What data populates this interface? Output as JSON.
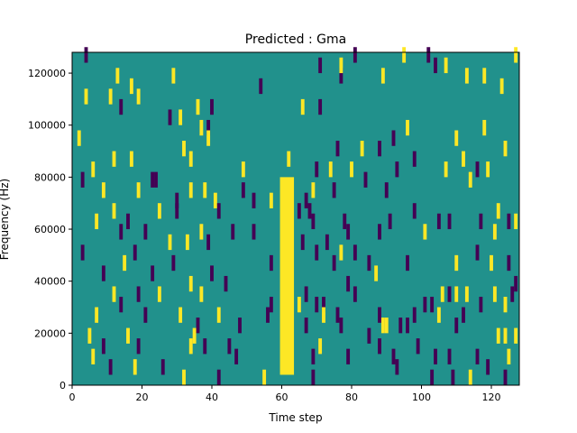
{
  "chart_data": {
    "type": "heatmap",
    "title": "Predicted : Gma",
    "xlabel": "Time step",
    "ylabel": "Frequency (Hz)",
    "xlim": [
      0,
      128
    ],
    "ylim": [
      0,
      128000
    ],
    "xticks": [
      0,
      20,
      40,
      60,
      80,
      100,
      120
    ],
    "yticks": [
      0,
      20000,
      40000,
      60000,
      80000,
      100000,
      120000
    ],
    "xtick_labels": [
      "0",
      "20",
      "40",
      "60",
      "80",
      "100",
      "120"
    ],
    "ytick_labels": [
      "0",
      "20000",
      "40000",
      "60000",
      "80000",
      "100000",
      "120000"
    ],
    "grid": false,
    "colormap": "viridis",
    "colors": {
      "background": "#21918c",
      "low": "#440154",
      "high": "#fde725",
      "frame": "#000000"
    },
    "cell_width_steps": 1,
    "cell_height_hz": 4000,
    "bright_band": {
      "x_start": 59.5,
      "x_end": 63.5,
      "y_start": 4000,
      "y_end": 80000,
      "value": "high"
    },
    "cells": [
      {
        "x": 4,
        "y": 124000,
        "v": "low"
      },
      {
        "x": 13,
        "y": 116000,
        "v": "yellow"
      },
      {
        "x": 17,
        "y": 112000,
        "v": "yellow"
      },
      {
        "x": 29,
        "y": 116000,
        "v": "yellow"
      },
      {
        "x": 36,
        "y": 104000,
        "v": "yellow"
      },
      {
        "x": 40,
        "y": 104000,
        "v": "low"
      },
      {
        "x": 54,
        "y": 112000,
        "v": "low"
      },
      {
        "x": 66,
        "y": 104000,
        "v": "yellow"
      },
      {
        "x": 71,
        "y": 104000,
        "v": "low"
      },
      {
        "x": 77,
        "y": 116000,
        "v": "low"
      },
      {
        "x": 71,
        "y": 120000,
        "v": "low"
      },
      {
        "x": 77,
        "y": 120000,
        "v": "yellow"
      },
      {
        "x": 81,
        "y": 124000,
        "v": "low"
      },
      {
        "x": 89,
        "y": 116000,
        "v": "yellow"
      },
      {
        "x": 95,
        "y": 124000,
        "v": "yellow"
      },
      {
        "x": 102,
        "y": 124000,
        "v": "low"
      },
      {
        "x": 104,
        "y": 120000,
        "v": "low"
      },
      {
        "x": 107,
        "y": 120000,
        "v": "yellow"
      },
      {
        "x": 113,
        "y": 116000,
        "v": "yellow"
      },
      {
        "x": 118,
        "y": 116000,
        "v": "yellow"
      },
      {
        "x": 123,
        "y": 112000,
        "v": "yellow"
      },
      {
        "x": 127,
        "y": 124000,
        "v": "yellow"
      },
      {
        "x": 2,
        "y": 92000,
        "v": "yellow"
      },
      {
        "x": 4,
        "y": 108000,
        "v": "yellow"
      },
      {
        "x": 6,
        "y": 80000,
        "v": "yellow"
      },
      {
        "x": 11,
        "y": 108000,
        "v": "yellow"
      },
      {
        "x": 14,
        "y": 104000,
        "v": "low"
      },
      {
        "x": 19,
        "y": 108000,
        "v": "yellow"
      },
      {
        "x": 28,
        "y": 100000,
        "v": "low"
      },
      {
        "x": 31,
        "y": 100000,
        "v": "yellow"
      },
      {
        "x": 37,
        "y": 96000,
        "v": "yellow"
      },
      {
        "x": 39,
        "y": 96000,
        "v": "low"
      },
      {
        "x": 32,
        "y": 88000,
        "v": "yellow"
      },
      {
        "x": 39,
        "y": 92000,
        "v": "yellow"
      },
      {
        "x": 34,
        "y": 84000,
        "v": "yellow"
      },
      {
        "x": 12,
        "y": 84000,
        "v": "yellow"
      },
      {
        "x": 17,
        "y": 84000,
        "v": "yellow"
      },
      {
        "x": 49,
        "y": 80000,
        "v": "yellow"
      },
      {
        "x": 62,
        "y": 84000,
        "v": "yellow"
      },
      {
        "x": 70,
        "y": 80000,
        "v": "low"
      },
      {
        "x": 74,
        "y": 80000,
        "v": "yellow"
      },
      {
        "x": 76,
        "y": 88000,
        "v": "low"
      },
      {
        "x": 83,
        "y": 88000,
        "v": "yellow"
      },
      {
        "x": 88,
        "y": 88000,
        "v": "low"
      },
      {
        "x": 92,
        "y": 92000,
        "v": "low"
      },
      {
        "x": 96,
        "y": 96000,
        "v": "yellow"
      },
      {
        "x": 110,
        "y": 92000,
        "v": "yellow"
      },
      {
        "x": 112,
        "y": 84000,
        "v": "yellow"
      },
      {
        "x": 118,
        "y": 96000,
        "v": "yellow"
      },
      {
        "x": 124,
        "y": 88000,
        "v": "yellow"
      },
      {
        "x": 119,
        "y": 80000,
        "v": "yellow"
      },
      {
        "x": 116,
        "y": 80000,
        "v": "low"
      },
      {
        "x": 114,
        "y": 76000,
        "v": "yellow"
      },
      {
        "x": 107,
        "y": 80000,
        "v": "yellow"
      },
      {
        "x": 98,
        "y": 84000,
        "v": "low"
      },
      {
        "x": 93,
        "y": 80000,
        "v": "low"
      },
      {
        "x": 90,
        "y": 72000,
        "v": "low"
      },
      {
        "x": 84,
        "y": 76000,
        "v": "low"
      },
      {
        "x": 80,
        "y": 80000,
        "v": "yellow"
      },
      {
        "x": 3,
        "y": 76000,
        "v": "low"
      },
      {
        "x": 9,
        "y": 72000,
        "v": "yellow"
      },
      {
        "x": 23,
        "y": 76000,
        "v": "low"
      },
      {
        "x": 24,
        "y": 76000,
        "v": "low"
      },
      {
        "x": 19,
        "y": 72000,
        "v": "yellow"
      },
      {
        "x": 30,
        "y": 68000,
        "v": "low"
      },
      {
        "x": 34,
        "y": 72000,
        "v": "yellow"
      },
      {
        "x": 38,
        "y": 72000,
        "v": "yellow"
      },
      {
        "x": 41,
        "y": 68000,
        "v": "yellow"
      },
      {
        "x": 49,
        "y": 72000,
        "v": "low"
      },
      {
        "x": 52,
        "y": 68000,
        "v": "low"
      },
      {
        "x": 57,
        "y": 68000,
        "v": "yellow"
      },
      {
        "x": 67,
        "y": 68000,
        "v": "low"
      },
      {
        "x": 69,
        "y": 72000,
        "v": "yellow"
      },
      {
        "x": 75,
        "y": 72000,
        "v": "low"
      },
      {
        "x": 12,
        "y": 64000,
        "v": "yellow"
      },
      {
        "x": 16,
        "y": 60000,
        "v": "low"
      },
      {
        "x": 25,
        "y": 64000,
        "v": "yellow"
      },
      {
        "x": 30,
        "y": 64000,
        "v": "low"
      },
      {
        "x": 42,
        "y": 64000,
        "v": "low"
      },
      {
        "x": 52,
        "y": 56000,
        "v": "low"
      },
      {
        "x": 65,
        "y": 64000,
        "v": "low"
      },
      {
        "x": 68,
        "y": 64000,
        "v": "low"
      },
      {
        "x": 69,
        "y": 60000,
        "v": "low"
      },
      {
        "x": 78,
        "y": 60000,
        "v": "low"
      },
      {
        "x": 79,
        "y": 56000,
        "v": "low"
      },
      {
        "x": 88,
        "y": 56000,
        "v": "low"
      },
      {
        "x": 91,
        "y": 60000,
        "v": "low"
      },
      {
        "x": 98,
        "y": 64000,
        "v": "low"
      },
      {
        "x": 101,
        "y": 56000,
        "v": "yellow"
      },
      {
        "x": 105,
        "y": 60000,
        "v": "low"
      },
      {
        "x": 108,
        "y": 60000,
        "v": "low"
      },
      {
        "x": 117,
        "y": 60000,
        "v": "low"
      },
      {
        "x": 122,
        "y": 64000,
        "v": "yellow"
      },
      {
        "x": 121,
        "y": 56000,
        "v": "yellow"
      },
      {
        "x": 125,
        "y": 60000,
        "v": "low"
      },
      {
        "x": 127,
        "y": 60000,
        "v": "yellow"
      },
      {
        "x": 7,
        "y": 60000,
        "v": "yellow"
      },
      {
        "x": 14,
        "y": 56000,
        "v": "low"
      },
      {
        "x": 21,
        "y": 56000,
        "v": "low"
      },
      {
        "x": 28,
        "y": 52000,
        "v": "yellow"
      },
      {
        "x": 33,
        "y": 52000,
        "v": "yellow"
      },
      {
        "x": 37,
        "y": 56000,
        "v": "yellow"
      },
      {
        "x": 39,
        "y": 52000,
        "v": "low"
      },
      {
        "x": 46,
        "y": 56000,
        "v": "low"
      },
      {
        "x": 57,
        "y": 44000,
        "v": "low"
      },
      {
        "x": 66,
        "y": 52000,
        "v": "low"
      },
      {
        "x": 70,
        "y": 48000,
        "v": "low"
      },
      {
        "x": 73,
        "y": 52000,
        "v": "low"
      },
      {
        "x": 75,
        "y": 44000,
        "v": "low"
      },
      {
        "x": 77,
        "y": 48000,
        "v": "yellow"
      },
      {
        "x": 81,
        "y": 48000,
        "v": "low"
      },
      {
        "x": 85,
        "y": 44000,
        "v": "low"
      },
      {
        "x": 87,
        "y": 40000,
        "v": "yellow"
      },
      {
        "x": 96,
        "y": 44000,
        "v": "low"
      },
      {
        "x": 110,
        "y": 44000,
        "v": "yellow"
      },
      {
        "x": 116,
        "y": 48000,
        "v": "low"
      },
      {
        "x": 120,
        "y": 44000,
        "v": "yellow"
      },
      {
        "x": 125,
        "y": 44000,
        "v": "low"
      },
      {
        "x": 3,
        "y": 48000,
        "v": "low"
      },
      {
        "x": 9,
        "y": 40000,
        "v": "low"
      },
      {
        "x": 15,
        "y": 44000,
        "v": "yellow"
      },
      {
        "x": 18,
        "y": 48000,
        "v": "low"
      },
      {
        "x": 23,
        "y": 40000,
        "v": "low"
      },
      {
        "x": 29,
        "y": 44000,
        "v": "low"
      },
      {
        "x": 34,
        "y": 36000,
        "v": "yellow"
      },
      {
        "x": 40,
        "y": 40000,
        "v": "low"
      },
      {
        "x": 44,
        "y": 36000,
        "v": "low"
      },
      {
        "x": 12,
        "y": 32000,
        "v": "yellow"
      },
      {
        "x": 19,
        "y": 32000,
        "v": "low"
      },
      {
        "x": 25,
        "y": 32000,
        "v": "yellow"
      },
      {
        "x": 37,
        "y": 32000,
        "v": "yellow"
      },
      {
        "x": 67,
        "y": 32000,
        "v": "low"
      },
      {
        "x": 70,
        "y": 28000,
        "v": "low"
      },
      {
        "x": 72,
        "y": 28000,
        "v": "low"
      },
      {
        "x": 79,
        "y": 36000,
        "v": "low"
      },
      {
        "x": 81,
        "y": 32000,
        "v": "low"
      },
      {
        "x": 88,
        "y": 24000,
        "v": "low"
      },
      {
        "x": 98,
        "y": 24000,
        "v": "low"
      },
      {
        "x": 101,
        "y": 28000,
        "v": "low"
      },
      {
        "x": 103,
        "y": 28000,
        "v": "low"
      },
      {
        "x": 106,
        "y": 32000,
        "v": "yellow"
      },
      {
        "x": 108,
        "y": 32000,
        "v": "low"
      },
      {
        "x": 110,
        "y": 32000,
        "v": "yellow"
      },
      {
        "x": 113,
        "y": 32000,
        "v": "yellow"
      },
      {
        "x": 117,
        "y": 28000,
        "v": "low"
      },
      {
        "x": 121,
        "y": 32000,
        "v": "yellow"
      },
      {
        "x": 124,
        "y": 28000,
        "v": "yellow"
      },
      {
        "x": 126,
        "y": 32000,
        "v": "low"
      },
      {
        "x": 127,
        "y": 36000,
        "v": "low"
      },
      {
        "x": 7,
        "y": 24000,
        "v": "yellow"
      },
      {
        "x": 14,
        "y": 28000,
        "v": "low"
      },
      {
        "x": 21,
        "y": 24000,
        "v": "low"
      },
      {
        "x": 31,
        "y": 24000,
        "v": "yellow"
      },
      {
        "x": 36,
        "y": 20000,
        "v": "low"
      },
      {
        "x": 42,
        "y": 24000,
        "v": "yellow"
      },
      {
        "x": 48,
        "y": 20000,
        "v": "low"
      },
      {
        "x": 56,
        "y": 24000,
        "v": "low"
      },
      {
        "x": 57,
        "y": 28000,
        "v": "low"
      },
      {
        "x": 65,
        "y": 28000,
        "v": "yellow"
      },
      {
        "x": 67,
        "y": 20000,
        "v": "low"
      },
      {
        "x": 72,
        "y": 24000,
        "v": "yellow"
      },
      {
        "x": 76,
        "y": 24000,
        "v": "low"
      },
      {
        "x": 77,
        "y": 20000,
        "v": "low"
      },
      {
        "x": 85,
        "y": 16000,
        "v": "low"
      },
      {
        "x": 89,
        "y": 20000,
        "v": "yellow"
      },
      {
        "x": 90,
        "y": 20000,
        "v": "yellow"
      },
      {
        "x": 94,
        "y": 20000,
        "v": "low"
      },
      {
        "x": 96,
        "y": 20000,
        "v": "low"
      },
      {
        "x": 105,
        "y": 24000,
        "v": "yellow"
      },
      {
        "x": 110,
        "y": 20000,
        "v": "low"
      },
      {
        "x": 112,
        "y": 24000,
        "v": "low"
      },
      {
        "x": 122,
        "y": 16000,
        "v": "yellow"
      },
      {
        "x": 124,
        "y": 16000,
        "v": "yellow"
      },
      {
        "x": 127,
        "y": 16000,
        "v": "yellow"
      },
      {
        "x": 5,
        "y": 16000,
        "v": "yellow"
      },
      {
        "x": 9,
        "y": 12000,
        "v": "low"
      },
      {
        "x": 16,
        "y": 16000,
        "v": "yellow"
      },
      {
        "x": 19,
        "y": 12000,
        "v": "low"
      },
      {
        "x": 34,
        "y": 12000,
        "v": "yellow"
      },
      {
        "x": 35,
        "y": 16000,
        "v": "yellow"
      },
      {
        "x": 38,
        "y": 12000,
        "v": "low"
      },
      {
        "x": 45,
        "y": 12000,
        "v": "low"
      },
      {
        "x": 47,
        "y": 8000,
        "v": "low"
      },
      {
        "x": 69,
        "y": 8000,
        "v": "low"
      },
      {
        "x": 71,
        "y": 12000,
        "v": "yellow"
      },
      {
        "x": 79,
        "y": 8000,
        "v": "low"
      },
      {
        "x": 88,
        "y": 12000,
        "v": "low"
      },
      {
        "x": 92,
        "y": 8000,
        "v": "low"
      },
      {
        "x": 99,
        "y": 12000,
        "v": "low"
      },
      {
        "x": 104,
        "y": 8000,
        "v": "low"
      },
      {
        "x": 108,
        "y": 8000,
        "v": "low"
      },
      {
        "x": 116,
        "y": 8000,
        "v": "low"
      },
      {
        "x": 119,
        "y": 4000,
        "v": "low"
      },
      {
        "x": 125,
        "y": 8000,
        "v": "yellow"
      },
      {
        "x": 6,
        "y": 8000,
        "v": "yellow"
      },
      {
        "x": 11,
        "y": 4000,
        "v": "low"
      },
      {
        "x": 18,
        "y": 4000,
        "v": "yellow"
      },
      {
        "x": 26,
        "y": 4000,
        "v": "low"
      },
      {
        "x": 32,
        "y": 0,
        "v": "yellow"
      },
      {
        "x": 42,
        "y": 0,
        "v": "low"
      },
      {
        "x": 55,
        "y": 0,
        "v": "yellow"
      },
      {
        "x": 69,
        "y": 0,
        "v": "low"
      },
      {
        "x": 93,
        "y": 4000,
        "v": "low"
      },
      {
        "x": 103,
        "y": 0,
        "v": "low"
      },
      {
        "x": 109,
        "y": 0,
        "v": "low"
      },
      {
        "x": 114,
        "y": 0,
        "v": "yellow"
      },
      {
        "x": 124,
        "y": 0,
        "v": "low"
      }
    ]
  }
}
